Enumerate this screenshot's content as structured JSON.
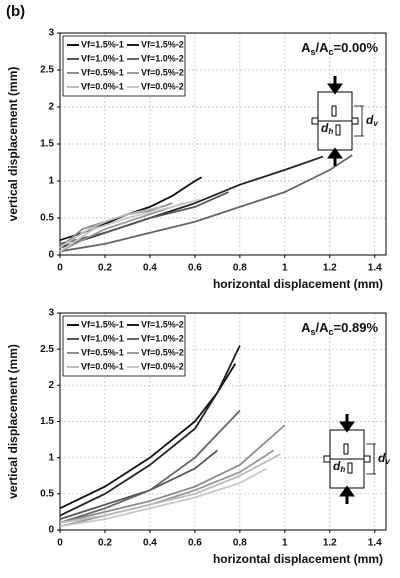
{
  "chart_data": [
    {
      "type": "line",
      "panel_label": "(b)",
      "annotation": [
        "A",
        "s",
        "/A",
        "c",
        "=0.00%"
      ],
      "inset_labels": {
        "v": [
          "d",
          "v"
        ],
        "h": [
          "d",
          "h"
        ]
      },
      "xlabel": "horizontal displacement (mm)",
      "ylabel": "vertical displacement (mm)",
      "xlim": [
        0,
        1.45
      ],
      "ylim": [
        0,
        3
      ],
      "xticks": [
        0,
        0.2,
        0.4,
        0.6,
        0.8,
        1,
        1.2,
        1.4
      ],
      "yticks": [
        0,
        0.5,
        1,
        1.5,
        2,
        2.5,
        3
      ],
      "grid": true,
      "series": [
        {
          "name": "Vf=1.5%-1",
          "color": "#111111",
          "x": [
            0,
            0.1,
            0.2,
            0.3,
            0.4,
            0.5,
            0.6,
            0.63
          ],
          "values": [
            0.2,
            0.3,
            0.42,
            0.55,
            0.65,
            0.8,
            1.0,
            1.05
          ]
        },
        {
          "name": "Vf=1.5%-2",
          "color": "#222222",
          "x": [
            0,
            0.2,
            0.4,
            0.6,
            0.8,
            1.0,
            1.17
          ],
          "values": [
            0.1,
            0.3,
            0.5,
            0.7,
            0.95,
            1.15,
            1.33
          ]
        },
        {
          "name": "Vf=1.0%-1",
          "color": "#555555",
          "x": [
            0,
            0.2,
            0.4,
            0.6,
            0.75
          ],
          "values": [
            0.15,
            0.3,
            0.5,
            0.65,
            0.85
          ]
        },
        {
          "name": "Vf=1.0%-2",
          "color": "#666666",
          "x": [
            0,
            0.2,
            0.4,
            0.6,
            0.8,
            1.0,
            1.2,
            1.3
          ],
          "values": [
            0.05,
            0.15,
            0.3,
            0.45,
            0.65,
            0.85,
            1.15,
            1.35
          ]
        },
        {
          "name": "Vf=0.5%-1",
          "color": "#8c8c8c",
          "x": [
            0,
            0.1,
            0.2,
            0.3,
            0.4,
            0.5
          ],
          "values": [
            0.1,
            0.35,
            0.45,
            0.55,
            0.6,
            0.7
          ]
        },
        {
          "name": "Vf=0.5%-2",
          "color": "#999999",
          "x": [
            0,
            0.2,
            0.4,
            0.55
          ],
          "values": [
            0.05,
            0.35,
            0.55,
            0.7
          ]
        },
        {
          "name": "Vf=0.0%-1",
          "color": "#bbbbbb",
          "x": [
            0,
            0.1,
            0.2,
            0.3,
            0.45
          ],
          "values": [
            0.1,
            0.3,
            0.45,
            0.55,
            0.65
          ]
        },
        {
          "name": "Vf=0.0%-2",
          "color": "#c8c8c8",
          "x": [
            0,
            0.15,
            0.3,
            0.5,
            0.62
          ],
          "values": [
            0.05,
            0.35,
            0.5,
            0.65,
            0.75
          ]
        }
      ]
    },
    {
      "type": "line",
      "annotation": [
        "A",
        "s",
        "/A",
        "c",
        "=0.89%"
      ],
      "inset_labels": {
        "v": [
          "d",
          "v"
        ],
        "h": [
          "d",
          "h"
        ]
      },
      "xlabel": "horizontal displacement (mm)",
      "ylabel": "vertical displacement (mm)",
      "xlim": [
        0,
        1.45
      ],
      "ylim": [
        0,
        3
      ],
      "xticks": [
        0,
        0.2,
        0.4,
        0.6,
        0.8,
        1,
        1.2,
        1.4
      ],
      "yticks": [
        0,
        0.5,
        1,
        1.5,
        2,
        2.5,
        3
      ],
      "grid": true,
      "series": [
        {
          "name": "Vf=1.5%-1",
          "color": "#111111",
          "x": [
            0,
            0.2,
            0.4,
            0.6,
            0.7,
            0.78
          ],
          "values": [
            0.3,
            0.6,
            1.0,
            1.5,
            1.9,
            2.3
          ]
        },
        {
          "name": "Vf=1.5%-2",
          "color": "#222222",
          "x": [
            0,
            0.2,
            0.4,
            0.6,
            0.7,
            0.8
          ],
          "values": [
            0.2,
            0.5,
            0.9,
            1.4,
            1.9,
            2.55
          ]
        },
        {
          "name": "Vf=1.0%-1",
          "color": "#555555",
          "x": [
            0,
            0.2,
            0.4,
            0.6,
            0.7
          ],
          "values": [
            0.15,
            0.35,
            0.55,
            0.85,
            1.1
          ]
        },
        {
          "name": "Vf=1.0%-2",
          "color": "#666666",
          "x": [
            0,
            0.2,
            0.4,
            0.6,
            0.8
          ],
          "values": [
            0.1,
            0.3,
            0.55,
            1.0,
            1.65
          ]
        },
        {
          "name": "Vf=0.5%-1",
          "color": "#8c8c8c",
          "x": [
            0,
            0.2,
            0.4,
            0.6,
            0.8,
            1.0
          ],
          "values": [
            0.1,
            0.25,
            0.4,
            0.6,
            0.9,
            1.45
          ]
        },
        {
          "name": "Vf=0.5%-2",
          "color": "#999999",
          "x": [
            0,
            0.2,
            0.4,
            0.6,
            0.8,
            0.95
          ],
          "values": [
            0.05,
            0.2,
            0.35,
            0.55,
            0.8,
            1.1
          ]
        },
        {
          "name": "Vf=0.0%-1",
          "color": "#bbbbbb",
          "x": [
            0,
            0.2,
            0.4,
            0.6,
            0.8,
            0.98
          ],
          "values": [
            0.1,
            0.2,
            0.35,
            0.5,
            0.75,
            1.05
          ]
        },
        {
          "name": "Vf=0.0%-2",
          "color": "#c8c8c8",
          "x": [
            0,
            0.2,
            0.4,
            0.6,
            0.8,
            0.92
          ],
          "values": [
            0.05,
            0.15,
            0.3,
            0.45,
            0.65,
            0.85
          ]
        }
      ]
    }
  ]
}
